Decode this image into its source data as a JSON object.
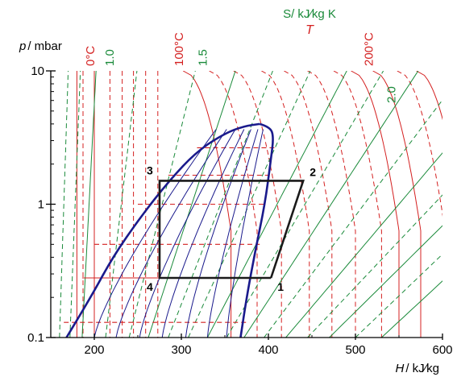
{
  "chart_data": {
    "type": "line",
    "subtype": "pressure-enthalpy diagram (log p vs H) with refrigeration cycle",
    "x_axis": {
      "label_var": "H",
      "label_unit": "/ kJ⁄kg",
      "range": [
        150,
        600
      ],
      "ticks": [
        {
          "value": 200,
          "label": "200"
        },
        {
          "value": 300,
          "label": "300"
        },
        {
          "value": 400,
          "label": "400"
        },
        {
          "value": 500,
          "label": "500"
        },
        {
          "value": 600,
          "label": "600"
        }
      ]
    },
    "y_axis": {
      "label_var": "p",
      "label_unit": "/ mbar",
      "scale": "log",
      "range": [
        0.1,
        10
      ],
      "ticks": [
        {
          "value": 0.1,
          "label": "0.1"
        },
        {
          "value": 1,
          "label": "1"
        },
        {
          "value": 10,
          "label": "10"
        }
      ]
    },
    "entropy_legend": {
      "text": "S/ kJ⁄kg K",
      "color": "#1a8a3a"
    },
    "temperature_legend": {
      "text": "T",
      "color": "#d42020"
    },
    "temperature_labels": [
      {
        "text": "0°C",
        "h": 200
      },
      {
        "text": "100°C",
        "h": 302
      },
      {
        "text": "200°C",
        "h": 520
      }
    ],
    "entropy_labels": [
      {
        "text": "1.0",
        "h": 222
      },
      {
        "text": "1.5",
        "h": 329
      },
      {
        "text": "2.0",
        "h": 546
      }
    ],
    "dome": {
      "critical_point": {
        "h": 390,
        "p": 4.0
      },
      "liquid_line": [
        [
          168,
          0.1
        ],
        [
          196,
          0.2
        ],
        [
          221,
          0.4
        ],
        [
          253,
          0.8
        ],
        [
          286,
          1.5
        ],
        [
          318,
          2.5
        ],
        [
          350,
          3.4
        ],
        [
          372,
          3.85
        ],
        [
          390,
          4.0
        ]
      ],
      "vapor_line": [
        [
          390,
          4.0
        ],
        [
          402,
          3.8
        ],
        [
          406,
          3.2
        ],
        [
          403,
          2.2
        ],
        [
          396,
          1.0
        ],
        [
          385,
          0.45
        ],
        [
          375,
          0.2
        ],
        [
          368,
          0.1
        ]
      ],
      "color": "#1a1a8c"
    },
    "isobars_dashed": [
      {
        "p": 0.13,
        "h_range": [
          165,
          378
        ]
      },
      {
        "p": 0.28,
        "h_range": [
          255,
          383
        ]
      },
      {
        "p": 0.5,
        "h_range": [
          200,
          390
        ]
      },
      {
        "p": 1.0,
        "h_range": [
          250,
          398
        ]
      },
      {
        "p": 1.65,
        "h_range": [
          285,
          400
        ]
      },
      {
        "p": 2.65,
        "h_range": [
          318,
          410
        ]
      }
    ],
    "isotherms": [
      {
        "h_start": 180,
        "kind": "solid"
      },
      {
        "h_start": 187,
        "kind": "dashed"
      },
      {
        "h_start": 200,
        "kind": "solid"
      },
      {
        "h_start": 218,
        "kind": "dashed"
      },
      {
        "h_start": 232,
        "kind": "dashed"
      },
      {
        "h_start": 245,
        "kind": "dashed"
      },
      {
        "h_start": 259,
        "kind": "dashed"
      },
      {
        "h_start": 273,
        "kind": "dashed"
      },
      {
        "h_start": 302,
        "kind": "solid"
      },
      {
        "h_start": 332,
        "kind": "dashed"
      },
      {
        "h_start": 360,
        "kind": "dashed"
      },
      {
        "h_start": 392,
        "kind": "dashed"
      },
      {
        "h_start": 418,
        "kind": "dashed"
      },
      {
        "h_start": 445,
        "kind": "dashed"
      },
      {
        "h_start": 475,
        "kind": "dashed"
      },
      {
        "h_start": 495,
        "kind": "solid"
      },
      {
        "h_start": 520,
        "kind": "solid"
      },
      {
        "h_start": 548,
        "kind": "dashed"
      },
      {
        "h_start": 570,
        "kind": "solid"
      }
    ],
    "isentropes": [
      {
        "h_bottom": 160,
        "slope": 5,
        "kind": "dashed"
      },
      {
        "h_bottom": 172,
        "slope": 6,
        "kind": "dashed"
      },
      {
        "h_bottom": 186,
        "slope": 8,
        "kind": "solid"
      },
      {
        "h_bottom": 213,
        "slope": 18,
        "kind": "dashed"
      },
      {
        "h_bottom": 240,
        "slope": 38,
        "kind": "dashed"
      },
      {
        "h_bottom": 262,
        "slope": 50,
        "kind": "solid"
      },
      {
        "h_bottom": 285,
        "slope": 60,
        "kind": "dashed"
      },
      {
        "h_bottom": 308,
        "slope": 70,
        "kind": "dashed"
      },
      {
        "h_bottom": 330,
        "slope": 80,
        "kind": "solid"
      },
      {
        "h_bottom": 352,
        "slope": 90,
        "kind": "dashed"
      },
      {
        "h_bottom": 372,
        "slope": 100,
        "kind": "solid"
      },
      {
        "h_bottom": 395,
        "slope": 115,
        "kind": "dashed"
      },
      {
        "h_bottom": 420,
        "slope": 130,
        "kind": "solid"
      },
      {
        "h_bottom": 445,
        "slope": 145,
        "kind": "dashed"
      },
      {
        "h_bottom": 470,
        "slope": 155,
        "kind": "solid"
      },
      {
        "h_bottom": 500,
        "slope": 160,
        "kind": "dashed"
      },
      {
        "h_bottom": 530,
        "slope": 165,
        "kind": "solid"
      }
    ],
    "quality_lines": [
      {
        "h_bottom": 200,
        "h_top": 340
      },
      {
        "h_bottom": 225,
        "h_top": 352
      },
      {
        "h_bottom": 252,
        "h_top": 362
      },
      {
        "h_bottom": 278,
        "h_top": 372
      },
      {
        "h_bottom": 305,
        "h_top": 380
      },
      {
        "h_bottom": 330,
        "h_top": 388
      },
      {
        "h_bottom": 352,
        "h_top": 394
      }
    ],
    "cycle": {
      "points": [
        {
          "label": "1",
          "h": 403,
          "p": 0.28
        },
        {
          "label": "2",
          "h": 440,
          "p": 1.5
        },
        {
          "label": "3",
          "h": 275,
          "p": 1.5
        },
        {
          "label": "4",
          "h": 275,
          "p": 0.28
        }
      ],
      "color": "#1a1a1a"
    },
    "liquid_isobar_solid": {
      "p": 0.28,
      "h_range": [
        186,
        275
      ]
    },
    "colors": {
      "temperature": "#d42020",
      "entropy": "#1a8a3a",
      "dome": "#1a1a8c",
      "axis": "#000000"
    },
    "grid": false
  }
}
